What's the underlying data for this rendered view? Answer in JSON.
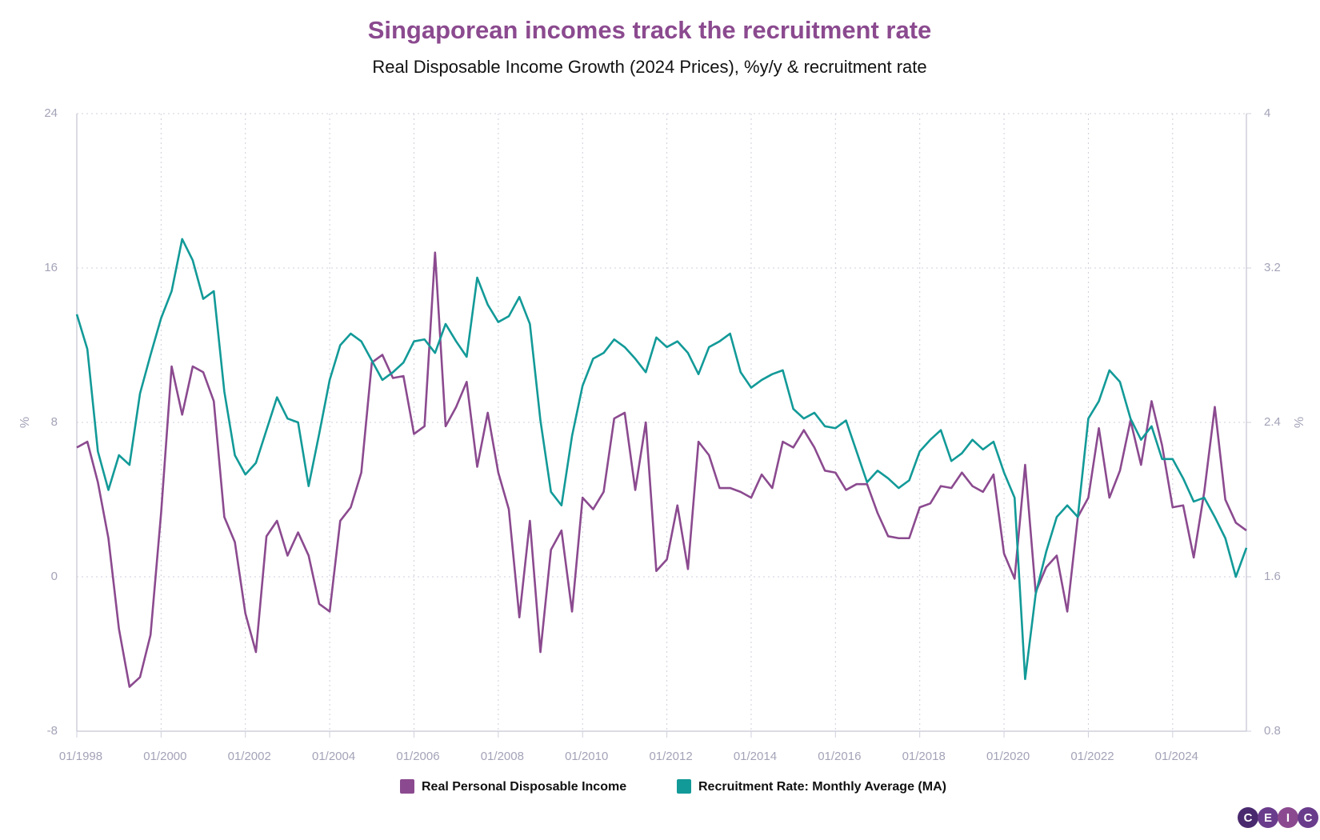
{
  "chart_data": {
    "type": "line",
    "title": "Singaporean incomes track the recruitment rate",
    "subtitle": "Real Disposable Income Growth (2024 Prices), %y/y & recruitment rate",
    "y_label": "%",
    "y2_label": "%",
    "x": [
      "01/1998",
      "04/1998",
      "07/1998",
      "10/1998",
      "01/1999",
      "04/1999",
      "07/1999",
      "10/1999",
      "01/2000",
      "04/2000",
      "07/2000",
      "10/2000",
      "01/2001",
      "04/2001",
      "07/2001",
      "10/2001",
      "01/2002",
      "04/2002",
      "07/2002",
      "10/2002",
      "01/2003",
      "04/2003",
      "07/2003",
      "10/2003",
      "01/2004",
      "04/2004",
      "07/2004",
      "10/2004",
      "01/2005",
      "04/2005",
      "07/2005",
      "10/2005",
      "01/2006",
      "04/2006",
      "07/2006",
      "10/2006",
      "01/2007",
      "04/2007",
      "07/2007",
      "10/2007",
      "01/2008",
      "04/2008",
      "07/2008",
      "10/2008",
      "01/2009",
      "04/2009",
      "07/2009",
      "10/2009",
      "01/2010",
      "04/2010",
      "07/2010",
      "10/2010",
      "01/2011",
      "04/2011",
      "07/2011",
      "10/2011",
      "01/2012",
      "04/2012",
      "07/2012",
      "10/2012",
      "01/2013",
      "04/2013",
      "07/2013",
      "10/2013",
      "01/2014",
      "04/2014",
      "07/2014",
      "10/2014",
      "01/2015",
      "04/2015",
      "07/2015",
      "10/2015",
      "01/2016",
      "04/2016",
      "07/2016",
      "10/2016",
      "01/2017",
      "04/2017",
      "07/2017",
      "10/2017",
      "01/2018",
      "04/2018",
      "07/2018",
      "10/2018",
      "01/2019",
      "04/2019",
      "07/2019",
      "10/2019",
      "01/2020",
      "04/2020",
      "07/2020",
      "10/2020",
      "01/2021",
      "04/2021",
      "07/2021",
      "10/2021",
      "01/2022",
      "04/2022",
      "07/2022",
      "10/2022",
      "01/2023",
      "04/2023",
      "07/2023",
      "10/2023",
      "01/2024",
      "04/2024",
      "07/2024",
      "10/2024",
      "01/2025",
      "04/2025",
      "07/2025",
      "10/2025"
    ],
    "series": [
      {
        "name": "Real Personal Disposable Income",
        "color": "#8b4a8f",
        "values": [
          6.7,
          7.0,
          4.9,
          2.0,
          -2.7,
          -5.7,
          -5.2,
          -3.0,
          3.3,
          10.9,
          8.4,
          10.9,
          10.6,
          9.1,
          3.1,
          1.8,
          -1.9,
          -3.9,
          2.1,
          2.9,
          1.1,
          2.3,
          1.1,
          -1.4,
          -1.8,
          2.9,
          3.6,
          5.4,
          11.1,
          11.5,
          10.3,
          10.4,
          7.4,
          7.8,
          16.8,
          7.8,
          8.8,
          10.1,
          5.7,
          8.5,
          5.4,
          3.5,
          -2.1,
          2.9,
          -3.9,
          1.4,
          2.4,
          -1.8,
          4.1,
          3.5,
          4.4,
          8.2,
          8.5,
          4.5,
          8.0,
          0.3,
          0.9,
          3.7,
          0.4,
          7.0,
          6.3,
          4.6,
          4.6,
          4.4,
          4.1,
          5.3,
          4.6,
          7.0,
          6.7,
          7.6,
          6.7,
          5.5,
          5.4,
          4.5,
          4.8,
          4.8,
          3.3,
          2.1,
          2.0,
          2.0,
          3.6,
          3.8,
          4.7,
          4.6,
          5.4,
          4.7,
          4.4,
          5.3,
          1.2,
          -0.1,
          5.8,
          -0.8,
          0.5,
          1.1,
          -1.8,
          3.1,
          4.1,
          7.7,
          4.1,
          5.5,
          8.1,
          5.8,
          9.1,
          6.8,
          3.6,
          3.7,
          1.0,
          4.4,
          8.8,
          4.0,
          2.8,
          2.4
        ]
      },
      {
        "name": "Recruitment Rate: Monthly Average (MA)",
        "color": "#129a98",
        "axis": "y2",
        "values": [
          2.96,
          2.78,
          2.25,
          2.05,
          2.23,
          2.18,
          2.55,
          2.75,
          2.94,
          3.08,
          3.35,
          3.24,
          3.04,
          3.08,
          2.56,
          2.23,
          2.13,
          2.19,
          2.36,
          2.53,
          2.42,
          2.4,
          2.07,
          2.34,
          2.62,
          2.8,
          2.86,
          2.82,
          2.72,
          2.62,
          2.66,
          2.71,
          2.82,
          2.83,
          2.76,
          2.91,
          2.82,
          2.74,
          3.15,
          3.01,
          2.92,
          2.95,
          3.05,
          2.91,
          2.41,
          2.04,
          1.97,
          2.33,
          2.59,
          2.73,
          2.76,
          2.83,
          2.79,
          2.73,
          2.66,
          2.84,
          2.79,
          2.82,
          2.76,
          2.65,
          2.79,
          2.82,
          2.86,
          2.66,
          2.58,
          2.62,
          2.65,
          2.67,
          2.47,
          2.42,
          2.45,
          2.38,
          2.37,
          2.41,
          2.25,
          2.09,
          2.15,
          2.11,
          2.06,
          2.1,
          2.25,
          2.31,
          2.36,
          2.2,
          2.24,
          2.31,
          2.26,
          2.3,
          2.14,
          2.01,
          1.07,
          1.51,
          1.73,
          1.91,
          1.97,
          1.91,
          2.42,
          2.51,
          2.67,
          2.61,
          2.42,
          2.31,
          2.38,
          2.21,
          2.21,
          2.11,
          1.99,
          2.01,
          1.91,
          1.8,
          1.6,
          1.75
        ]
      }
    ],
    "xlim": [
      "01/1998",
      "10/2025"
    ],
    "xticks": [
      "01/1998",
      "01/2000",
      "01/2002",
      "01/2004",
      "01/2006",
      "01/2008",
      "01/2010",
      "01/2012",
      "01/2014",
      "01/2016",
      "01/2018",
      "01/2020",
      "01/2022",
      "01/2024"
    ],
    "ylim": [
      -8,
      24
    ],
    "yticks": [
      -8,
      0,
      8,
      16,
      24
    ],
    "y2lim": [
      0.8,
      4
    ],
    "y2ticks": [
      0.8,
      1.6,
      2.4,
      3.2,
      4
    ],
    "grid": true,
    "legend": "bottom",
    "logo": [
      "C",
      "E",
      "I",
      "C"
    ]
  }
}
